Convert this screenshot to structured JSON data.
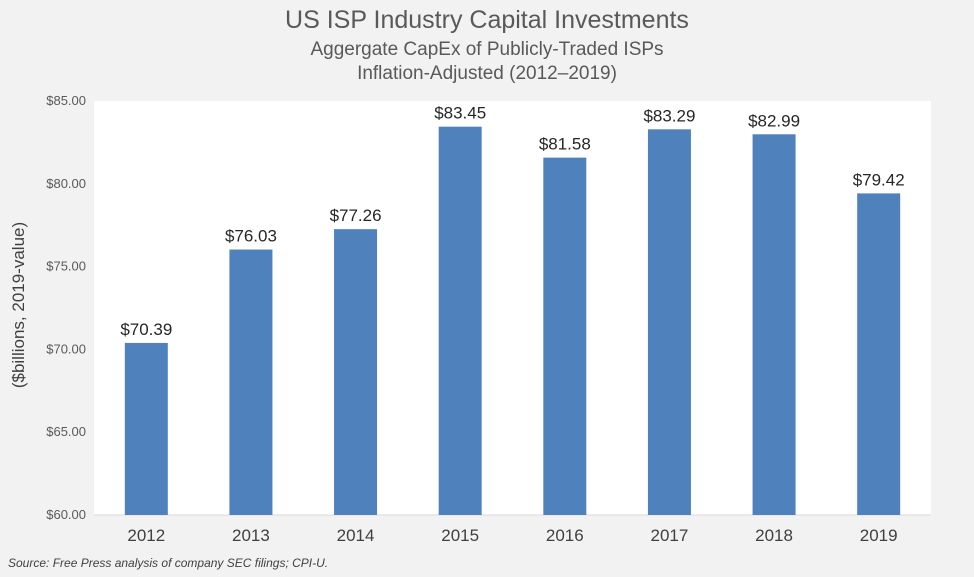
{
  "chart_data": {
    "type": "bar",
    "title": "US ISP Industry Capital Investments",
    "subtitle": [
      "Aggergate CapEx of Publicly-Traded ISPs",
      "Inflation-Adjusted (2012–2019)"
    ],
    "ylabel": "($billions, 2019-value)",
    "xlabel": "",
    "categories": [
      "2012",
      "2013",
      "2014",
      "2015",
      "2016",
      "2017",
      "2018",
      "2019"
    ],
    "values": [
      70.39,
      76.03,
      77.26,
      83.45,
      81.58,
      83.29,
      82.99,
      79.42
    ],
    "value_labels": [
      "$70.39",
      "$76.03",
      "$77.26",
      "$83.45",
      "$81.58",
      "$83.29",
      "$82.99",
      "$79.42"
    ],
    "ylim": [
      60,
      85
    ],
    "yticks": [
      60,
      65,
      70,
      75,
      80,
      85
    ],
    "ytick_labels": [
      "$60.00",
      "$65.00",
      "$70.00",
      "$75.00",
      "$80.00",
      "$85.00"
    ],
    "bar_color": "#4f81bd",
    "grid": false,
    "legend": "none",
    "source": "Source: Free Press analysis of company SEC filings; CPI-U."
  }
}
